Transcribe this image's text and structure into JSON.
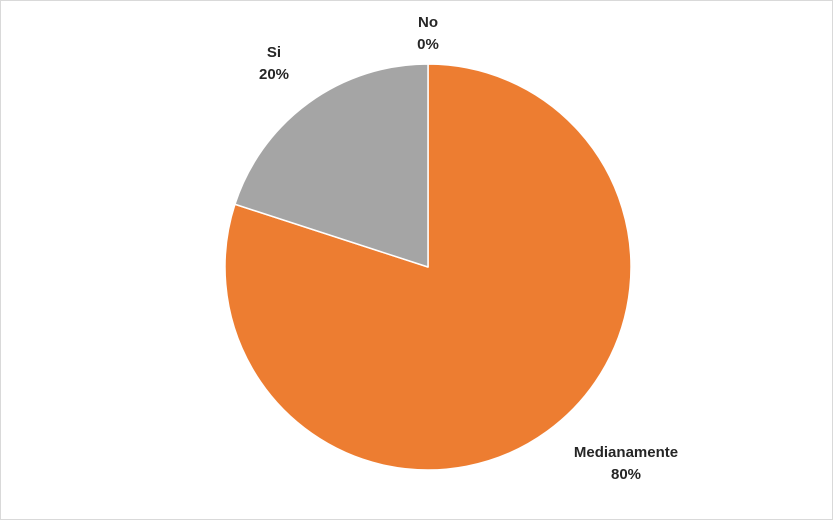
{
  "chart_data": {
    "type": "pie",
    "start_angle_deg": 0,
    "direction": "clockwise",
    "slices": [
      {
        "category": "No",
        "value": 0,
        "percent_label": "0%",
        "color": "#4472C4"
      },
      {
        "category": "Medianamente",
        "value": 80,
        "percent_label": "80%",
        "color": "#ED7D31"
      },
      {
        "category": "Si",
        "value": 20,
        "percent_label": "20%",
        "color": "#A5A5A5"
      }
    ],
    "legend": "none",
    "slice_border_color": "#ffffff"
  }
}
